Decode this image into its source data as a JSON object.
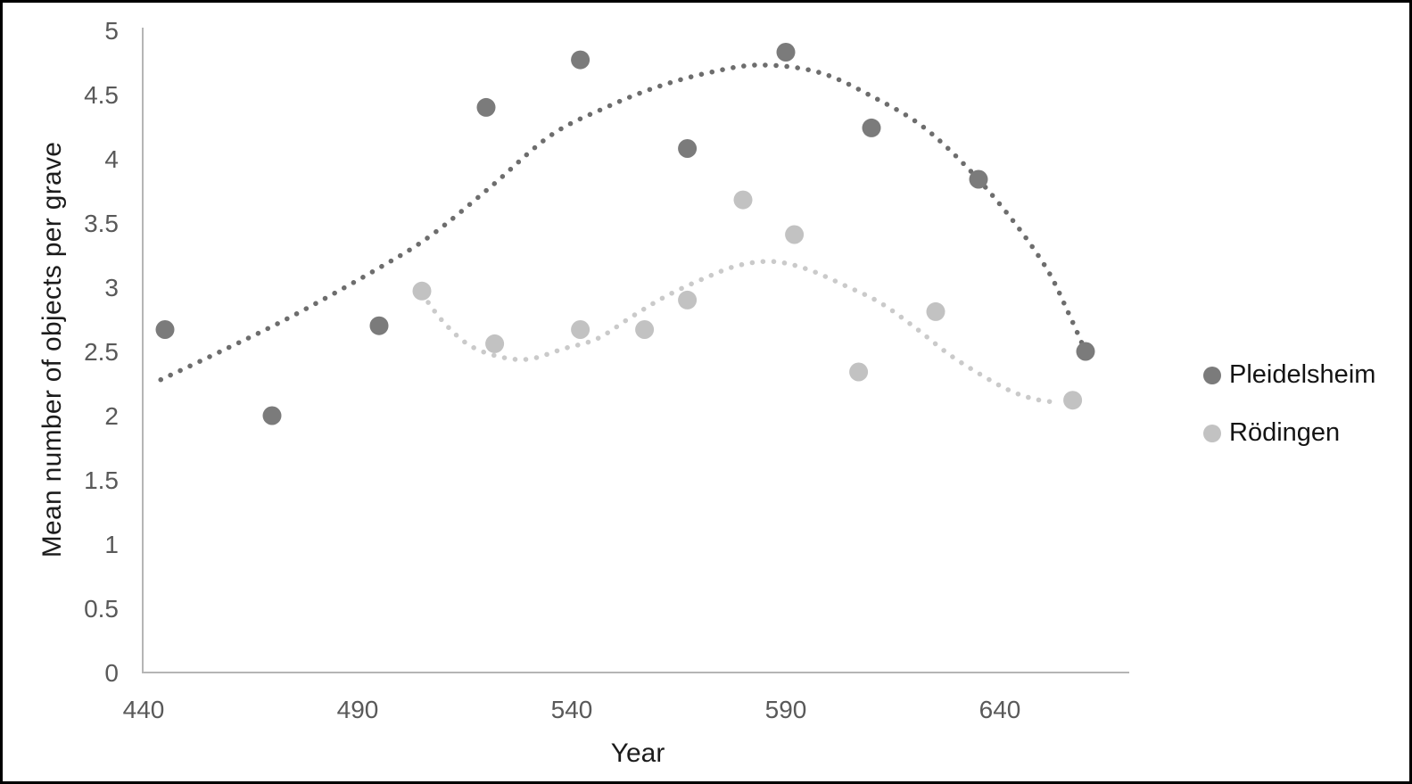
{
  "chart_data": {
    "type": "scatter",
    "title": "",
    "xlabel": "Year",
    "ylabel": "Mean number of objects per grave",
    "xlim": [
      440,
      670
    ],
    "ylim": [
      0,
      5
    ],
    "x_ticks": [
      "440",
      "490",
      "540",
      "590",
      "640"
    ],
    "y_ticks": [
      "0",
      "0.5",
      "1",
      "1.5",
      "2",
      "2.5",
      "3",
      "3.5",
      "4",
      "4.5",
      "5"
    ],
    "grid": false,
    "legend_position": "right-middle",
    "colors": {
      "axis_line": "#b5b5b5",
      "tick_text": "#595959",
      "title_text": "#1c1c1c",
      "background": "#ffffff",
      "border": "#000000"
    },
    "series": [
      {
        "name": "Pleidelsheim",
        "marker_color": "#7b7b7b",
        "trend_color": "#6d6d6d",
        "trend_style": "dotted",
        "points": [
          [
            445,
            2.67
          ],
          [
            470,
            2.0
          ],
          [
            495,
            2.7
          ],
          [
            520,
            4.4
          ],
          [
            542,
            4.77
          ],
          [
            567,
            4.08
          ],
          [
            590,
            4.83
          ],
          [
            610,
            4.24
          ],
          [
            635,
            3.84
          ],
          [
            660,
            2.5
          ]
        ],
        "trend_points": [
          [
            444,
            2.28
          ],
          [
            458,
            2.5
          ],
          [
            475,
            2.78
          ],
          [
            495,
            3.15
          ],
          [
            507,
            3.4
          ],
          [
            521,
            3.78
          ],
          [
            535,
            4.18
          ],
          [
            548,
            4.4
          ],
          [
            560,
            4.56
          ],
          [
            572,
            4.67
          ],
          [
            584,
            4.73
          ],
          [
            598,
            4.67
          ],
          [
            611,
            4.47
          ],
          [
            622,
            4.25
          ],
          [
            633,
            3.91
          ],
          [
            643,
            3.52
          ],
          [
            651,
            3.14
          ],
          [
            656,
            2.8
          ],
          [
            660,
            2.5
          ]
        ]
      },
      {
        "name": "Rödingen",
        "marker_color": "#c2c2c2",
        "trend_color": "#cacaca",
        "trend_style": "dotted",
        "points": [
          [
            505,
            2.97
          ],
          [
            522,
            2.56
          ],
          [
            542,
            2.67
          ],
          [
            557,
            2.67
          ],
          [
            567,
            2.9
          ],
          [
            580,
            3.68
          ],
          [
            592,
            3.41
          ],
          [
            607,
            2.34
          ],
          [
            625,
            2.81
          ],
          [
            657,
            2.12
          ]
        ],
        "trend_points": [
          [
            505,
            2.95
          ],
          [
            510,
            2.73
          ],
          [
            516,
            2.55
          ],
          [
            523,
            2.46
          ],
          [
            530,
            2.44
          ],
          [
            538,
            2.52
          ],
          [
            546,
            2.6
          ],
          [
            554,
            2.77
          ],
          [
            562,
            2.93
          ],
          [
            571,
            3.07
          ],
          [
            579,
            3.17
          ],
          [
            587,
            3.2
          ],
          [
            595,
            3.14
          ],
          [
            604,
            3.01
          ],
          [
            612,
            2.88
          ],
          [
            620,
            2.69
          ],
          [
            628,
            2.48
          ],
          [
            635,
            2.33
          ],
          [
            642,
            2.2
          ],
          [
            648,
            2.13
          ],
          [
            654,
            2.1
          ]
        ]
      }
    ]
  }
}
